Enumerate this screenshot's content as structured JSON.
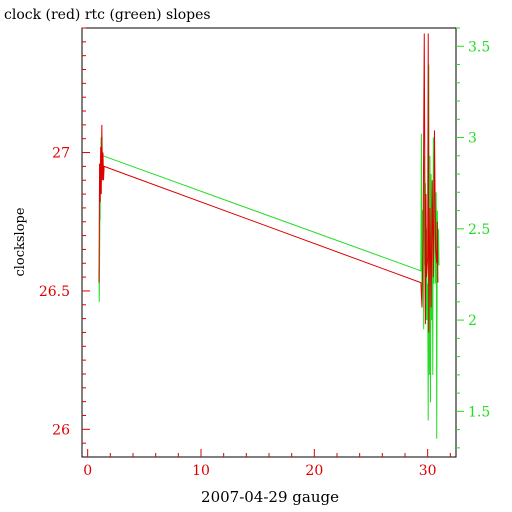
{
  "chart_data": {
    "type": "line",
    "title": "clock (red) rtc (green) slopes",
    "xlabel": "2007-04-29 gauge",
    "ylabel": "clockslope",
    "xlim": [
      -0.5,
      32.5
    ],
    "ylim_left": [
      25.9,
      27.45
    ],
    "ylim_right": [
      1.25,
      3.6
    ],
    "x_ticks": [
      0,
      10,
      20,
      30
    ],
    "y_ticks_left": [
      26,
      26.5,
      27
    ],
    "y_ticks_right": [
      1.5,
      2,
      2.5,
      3,
      3.5
    ],
    "grid": false,
    "colors": {
      "clock": "#dd0000",
      "rtc": "#22dd22",
      "frame": "#000000"
    },
    "series": [
      {
        "name": "clock",
        "axis": "left",
        "x": [
          1.0,
          1.05,
          1.1,
          1.15,
          1.2,
          1.25,
          1.3,
          1.35,
          1.4,
          1.45,
          29.4,
          29.5,
          29.6,
          29.7,
          29.8,
          29.85,
          29.9,
          30.0,
          30.05,
          30.1,
          30.2,
          30.3,
          30.4,
          30.5,
          30.6,
          30.7,
          30.8,
          30.85,
          30.9
        ],
        "y": [
          26.53,
          26.96,
          26.82,
          27.02,
          26.85,
          27.1,
          26.9,
          27.0,
          26.9,
          26.95,
          26.53,
          26.44,
          26.7,
          27.43,
          26.38,
          26.85,
          26.55,
          26.62,
          27.43,
          26.35,
          26.8,
          26.44,
          26.9,
          26.55,
          27.08,
          26.65,
          26.6,
          26.75,
          26.53
        ]
      },
      {
        "name": "rtc",
        "axis": "right",
        "x": [
          1.0,
          1.02,
          1.05,
          1.08,
          1.1,
          1.13,
          1.15,
          1.18,
          1.2,
          1.25,
          1.3,
          1.35,
          29.4,
          29.45,
          29.5,
          29.55,
          29.6,
          29.65,
          29.7,
          29.75,
          29.8,
          29.85,
          29.9,
          29.95,
          30.0,
          30.05,
          30.1,
          30.15,
          30.2,
          30.25,
          30.3,
          30.35,
          30.4,
          30.45,
          30.5,
          30.55,
          30.6,
          30.65,
          30.7,
          30.75,
          30.8,
          30.85,
          30.9,
          30.95,
          31.0
        ],
        "y": [
          2.27,
          2.1,
          2.32,
          2.6,
          2.55,
          2.9,
          2.75,
          3.0,
          2.85,
          3.01,
          2.85,
          2.9,
          2.27,
          3.02,
          2.1,
          2.6,
          2.6,
          1.95,
          2.9,
          2.3,
          2.75,
          2.0,
          2.5,
          2.0,
          2.2,
          1.45,
          3.4,
          1.7,
          2.9,
          1.55,
          2.8,
          2.0,
          2.6,
          1.7,
          3.0,
          2.2,
          2.9,
          2.5,
          2.2,
          2.7,
          1.35,
          2.6,
          2.3,
          2.5,
          2.3
        ]
      }
    ]
  }
}
